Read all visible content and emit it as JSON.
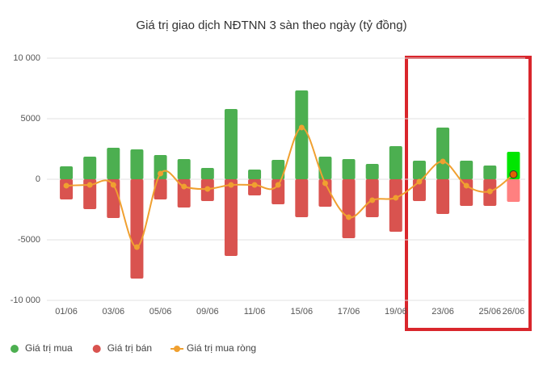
{
  "chart_data": {
    "type": "bar",
    "title": "Giá trị giao dịch NĐTNN 3 sàn theo ngày (tỷ đồng)",
    "categories": [
      "01/06",
      null,
      "03/06",
      null,
      "05/06",
      null,
      "09/06",
      null,
      "11/06",
      null,
      "15/06",
      null,
      "17/06",
      null,
      "19/06",
      null,
      "23/06",
      null,
      "25/06",
      "26/06"
    ],
    "series": [
      {
        "name": "Giá trị mua",
        "type": "bar",
        "color": "#4caf50",
        "colors": [
          "#4caf50",
          "#4caf50",
          "#4caf50",
          "#4caf50",
          "#4caf50",
          "#4caf50",
          "#4caf50",
          "#4caf50",
          "#4caf50",
          "#4caf50",
          "#4caf50",
          "#4caf50",
          "#4caf50",
          "#4caf50",
          "#4caf50",
          "#4caf50",
          "#4caf50",
          "#4caf50",
          "#4caf50",
          "#00e600"
        ],
        "values": [
          1070,
          1870,
          2600,
          2470,
          2000,
          1670,
          930,
          5800,
          800,
          1600,
          7330,
          1870,
          1670,
          1270,
          2730,
          1530,
          4270,
          1530,
          1130,
          2270
        ]
      },
      {
        "name": "Giá trị bán",
        "type": "bar",
        "color": "#d9534f",
        "colors": [
          "#d9534f",
          "#d9534f",
          "#d9534f",
          "#d9534f",
          "#d9534f",
          "#d9534f",
          "#d9534f",
          "#d9534f",
          "#d9534f",
          "#d9534f",
          "#d9534f",
          "#d9534f",
          "#d9534f",
          "#d9534f",
          "#d9534f",
          "#d9534f",
          "#d9534f",
          "#d9534f",
          "#d9534f",
          "#ff8080"
        ],
        "values": [
          -1670,
          -2470,
          -3200,
          -8200,
          -1670,
          -2330,
          -1800,
          -6330,
          -1330,
          -2070,
          -3130,
          -2270,
          -4870,
          -3130,
          -4330,
          -1800,
          -2870,
          -2200,
          -2200,
          -1870
        ]
      },
      {
        "name": "Giá trị mua ròng",
        "type": "line",
        "color": "#f0a030",
        "values": [
          -530,
          -470,
          -470,
          -5600,
          470,
          -600,
          -800,
          -470,
          -470,
          -470,
          4270,
          -330,
          -3130,
          -1730,
          -1530,
          -200,
          1470,
          -530,
          -1000,
          400
        ]
      }
    ],
    "ylim": [
      -10000,
      10000
    ],
    "yticks": [
      {
        "value": -10000,
        "label": "-10 000"
      },
      -5000,
      0,
      5000,
      {
        "value": 10000,
        "label": "10 000"
      }
    ],
    "grid": true,
    "legend": "bottom-left"
  }
}
